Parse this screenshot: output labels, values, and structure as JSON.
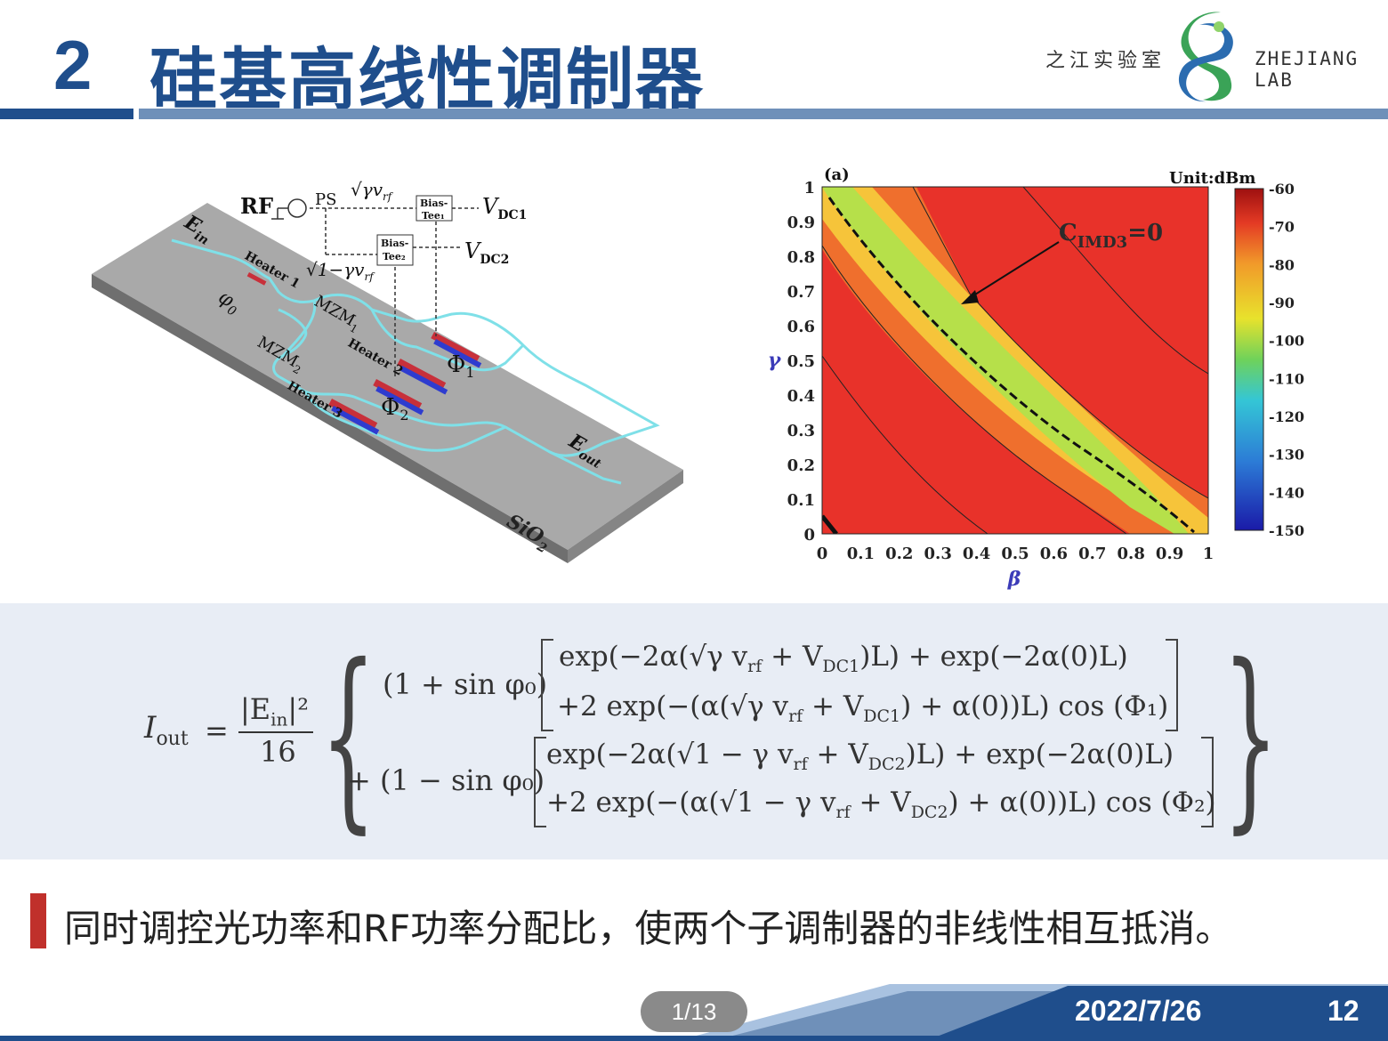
{
  "header": {
    "section_number": "2",
    "title": "硅基高线性调制器",
    "logo_cn": "之江实验室",
    "logo_en": "ZHEJIANG LAB"
  },
  "left_figure": {
    "rf": "RF",
    "ps": "PS",
    "sqrt_gamma_v": "√γv",
    "rf_sub": "rf",
    "sqrt_one_minus_gamma_v": "√1−γv",
    "bias_tee_1": "Bias-",
    "bias_tee_1b": "Tee₁",
    "bias_tee_2": "Bias-",
    "bias_tee_2b": "Tee₂",
    "vdc1": "V",
    "vdc1_sub": "DC1",
    "vdc2": "V",
    "vdc2_sub": "DC2",
    "ein": "E",
    "ein_sub": "in",
    "eout": "E",
    "eout_sub": "out",
    "heater1": "Heater 1",
    "heater2": "Heater 2",
    "heater3": "Heater 3",
    "phi0": "φ",
    "phi0_sub": "0",
    "mzm1": "MZM",
    "mzm1_sub": "1",
    "mzm2": "MZM",
    "mzm2_sub": "2",
    "Phi1": "Φ",
    "Phi1_sub": "1",
    "Phi2": "Φ",
    "Phi2_sub": "2",
    "sio2": "SiO",
    "sio2_sub": "2"
  },
  "chart_data": {
    "type": "heatmap",
    "panel_label": "(a)",
    "unit_label": "Unit:dBm",
    "xlabel": "β",
    "ylabel": "γ",
    "xlim": [
      0,
      1
    ],
    "ylim": [
      0,
      1
    ],
    "x_ticks": [
      "0",
      "0.1",
      "0.2",
      "0.3",
      "0.4",
      "0.5",
      "0.6",
      "0.7",
      "0.8",
      "0.9",
      "1"
    ],
    "y_ticks": [
      "0",
      "0.1",
      "0.2",
      "0.3",
      "0.4",
      "0.5",
      "0.6",
      "0.7",
      "0.8",
      "0.9",
      "1"
    ],
    "colorbar_ticks": [
      "-60",
      "-70",
      "-80",
      "-90",
      "-100",
      "-110",
      "-120",
      "-130",
      "-140",
      "-150"
    ],
    "colorbar_range": [
      -150,
      -60
    ],
    "annotation_text": "C",
    "annotation_sub": "IMD3",
    "annotation_suffix": "=0",
    "colors": {
      "red": "#e8322a",
      "orange": "#ef6f2d",
      "yellow": "#f6c43a",
      "green": "#b6e04a",
      "dark": "#222222"
    }
  },
  "formula": {
    "lhs": "I",
    "lhs_sub": "out",
    "equals": "=",
    "num": "|E",
    "num_sub": "in",
    "num_tail": "|²",
    "den": "16",
    "row1_prefix": "(1 + sin φ₀)",
    "row1_a": "exp(−2α(√γ v",
    "row1_a2": "rf",
    "row1_a3": " + V",
    "row1_a4": "DC1",
    "row1_a5": ")L) + exp(−2α(0)L)",
    "row1_b": "+2 exp(−(α(√γ v",
    "row1_b2": "rf",
    "row1_b3": " + V",
    "row1_b4": "DC1",
    "row1_b5": ") + α(0))L) cos (Φ₁)",
    "row2_prefix": "+ (1 − sin φ₀)",
    "row2_a": "exp(−2α(√1 − γ v",
    "row2_a2": "rf",
    "row2_a3": " + V",
    "row2_a4": "DC2",
    "row2_a5": ")L) + exp(−2α(0)L)",
    "row2_b": "+2 exp(−(α(√1 − γ v",
    "row2_b2": "rf",
    "row2_b3": " + V",
    "row2_b4": "DC2",
    "row2_b5": ") + α(0))L) cos (Φ₂)"
  },
  "bullet": {
    "text": "同时调控光功率和RF功率分配比，使两个子调制器的非线性相互抵消。"
  },
  "footer": {
    "page_indicator": "1/13",
    "date": "2022/7/26",
    "page_number": "12"
  }
}
